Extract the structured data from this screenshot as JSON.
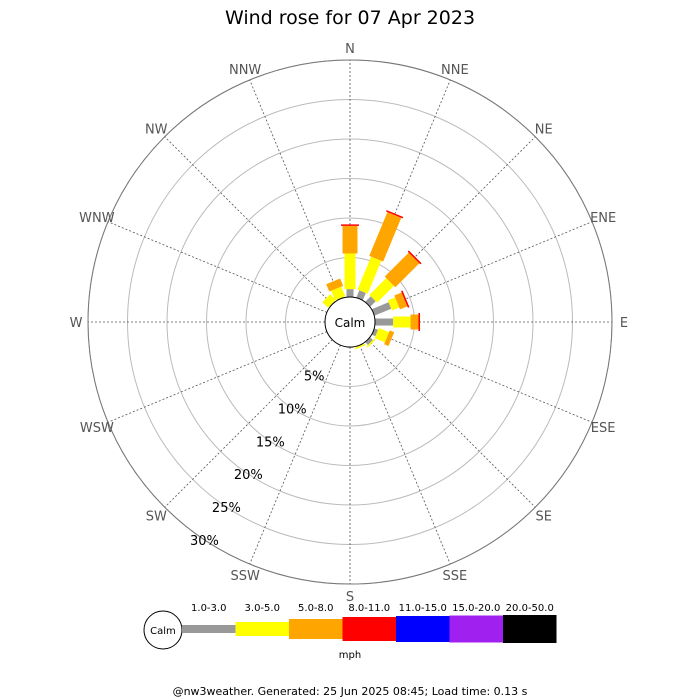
{
  "chart_data": {
    "type": "wind-rose",
    "title": "Wind rose for 07 Apr 2023",
    "directions": [
      "N",
      "NNE",
      "NE",
      "ENE",
      "E",
      "ESE",
      "SE",
      "SSE",
      "S",
      "SSW",
      "SW",
      "WSW",
      "W",
      "WNW",
      "NW",
      "NNW"
    ],
    "ring_labels": [
      "5%",
      "10%",
      "15%",
      "20%",
      "25%",
      "30%"
    ],
    "rings": [
      5,
      10,
      15,
      20,
      25,
      30
    ],
    "calm_label": "Calm",
    "unit": "mph",
    "speed_bins": [
      {
        "label": "1.0-3.0",
        "color": "#999999"
      },
      {
        "label": "3.0-5.0",
        "color": "#ffff00"
      },
      {
        "label": "5.0-8.0",
        "color": "#ffa500"
      },
      {
        "label": "8.0-11.0",
        "color": "#ff0000"
      },
      {
        "label": "11.0-15.0",
        "color": "#0000ff"
      },
      {
        "label": "15.0-20.0",
        "color": "#a020f0"
      },
      {
        "label": "20.0-50.0",
        "color": "#000000"
      }
    ],
    "series": [
      {
        "direction": "N",
        "values": [
          1.0,
          4.5,
          3.5,
          0.2
        ]
      },
      {
        "direction": "NNE",
        "values": [
          1.0,
          4.5,
          6.0,
          0.2
        ]
      },
      {
        "direction": "NE",
        "values": [
          1.0,
          3.0,
          4.3,
          0.2
        ]
      },
      {
        "direction": "ENE",
        "values": [
          2.3,
          1.0,
          1.0,
          0.2
        ]
      },
      {
        "direction": "E",
        "values": [
          2.3,
          2.2,
          1.0,
          0.2
        ]
      },
      {
        "direction": "ESE",
        "values": [
          0.5,
          1.4,
          0.6
        ]
      },
      {
        "direction": "SE",
        "values": [
          0.5,
          0.2
        ]
      },
      {
        "direction": "SSE",
        "values": [
          0.1,
          0.2
        ]
      },
      {
        "direction": "S",
        "values": [
          0.1
        ]
      },
      {
        "direction": "SSW",
        "values": []
      },
      {
        "direction": "SW",
        "values": []
      },
      {
        "direction": "WSW",
        "values": []
      },
      {
        "direction": "W",
        "values": []
      },
      {
        "direction": "WNW",
        "values": []
      },
      {
        "direction": "NW",
        "values": [
          0.1,
          1.0
        ]
      },
      {
        "direction": "NNW",
        "values": [
          0.1,
          1.3,
          1.0
        ]
      }
    ]
  },
  "footer": "@nw3weather. Generated: 25 Jun 2025 08:45; Load time: 0.13 s"
}
